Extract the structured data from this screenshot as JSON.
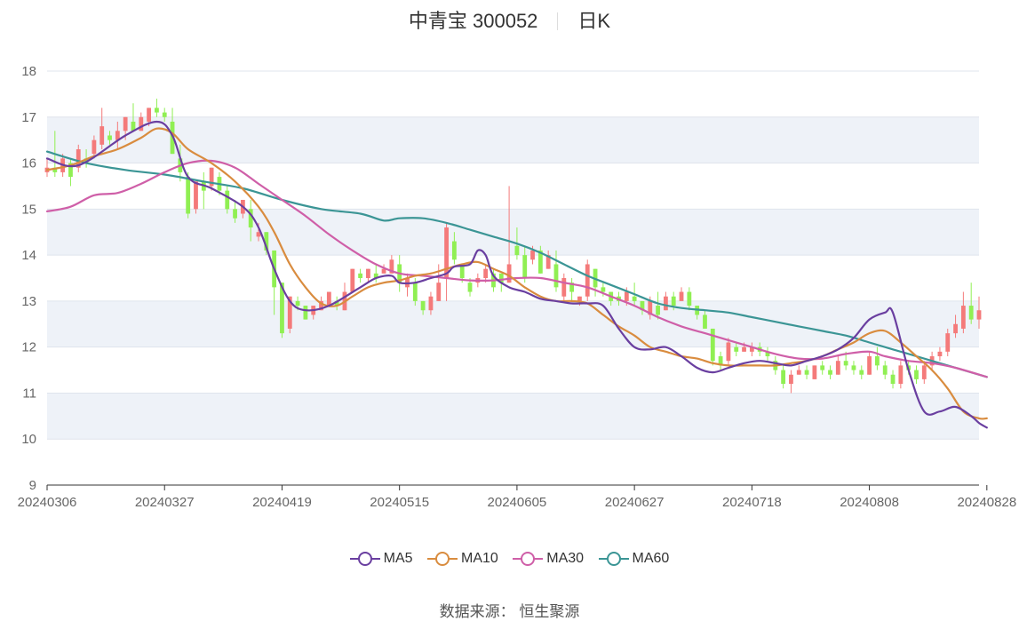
{
  "title": {
    "name": "中青宝 300052",
    "period": "日K"
  },
  "source": {
    "label": "数据来源：",
    "value": "恒生聚源"
  },
  "colors": {
    "up": "#f47a7a",
    "down": "#90ef53",
    "MA5": "#6a3fa0",
    "MA10": "#d98c3f",
    "MA30": "#cf5fa8",
    "MA60": "#3b9595",
    "band": "#eef2f8",
    "grid": "#dfe4ec"
  },
  "chart_data": {
    "type": "candlestick",
    "ylim": [
      9,
      18
    ],
    "yticks": [
      9,
      10,
      11,
      12,
      13,
      14,
      15,
      16,
      17,
      18
    ],
    "xtick_labels": [
      "20240306",
      "20240327",
      "20240419",
      "20240515",
      "20240605",
      "20240627",
      "20240718",
      "20240808",
      "20240828"
    ],
    "xtick_indices": [
      0,
      15,
      30,
      45,
      60,
      75,
      90,
      105,
      120
    ],
    "legend": [
      "MA5",
      "MA10",
      "MA30",
      "MA60"
    ],
    "legend_position": "bottom",
    "candles": [
      [
        15.8,
        15.9,
        16.1,
        15.7
      ],
      [
        15.9,
        15.8,
        16.7,
        15.7
      ],
      [
        15.8,
        16.1,
        16.2,
        15.7
      ],
      [
        16.0,
        15.7,
        16.1,
        15.5
      ],
      [
        15.9,
        16.3,
        16.4,
        15.8
      ],
      [
        16.1,
        16.0,
        16.3,
        15.9
      ],
      [
        16.2,
        16.5,
        16.6,
        16.1
      ],
      [
        16.4,
        16.8,
        17.2,
        16.3
      ],
      [
        16.6,
        16.5,
        16.7,
        16.4
      ],
      [
        16.5,
        16.7,
        16.9,
        16.3
      ],
      [
        16.7,
        17.0,
        17.0,
        16.5
      ],
      [
        16.9,
        16.7,
        17.3,
        16.7
      ],
      [
        16.7,
        17.0,
        17.1,
        16.7
      ],
      [
        16.9,
        17.2,
        17.2,
        16.8
      ],
      [
        17.2,
        17.1,
        17.4,
        17.0
      ],
      [
        17.1,
        17.0,
        17.2,
        16.9
      ],
      [
        16.9,
        16.2,
        17.2,
        16.2
      ],
      [
        16.1,
        15.8,
        16.4,
        15.6
      ],
      [
        15.7,
        14.9,
        15.8,
        14.8
      ],
      [
        15.0,
        15.6,
        15.6,
        14.9
      ],
      [
        15.6,
        15.4,
        15.8,
        15.0
      ],
      [
        15.5,
        15.9,
        15.9,
        15.4
      ],
      [
        15.7,
        15.4,
        15.8,
        15.3
      ],
      [
        15.4,
        15.0,
        15.5,
        14.9
      ],
      [
        15.0,
        14.8,
        15.2,
        14.7
      ],
      [
        14.9,
        15.2,
        15.2,
        14.8
      ],
      [
        15.0,
        14.6,
        15.2,
        14.3
      ],
      [
        14.4,
        14.5,
        14.7,
        14.3
      ],
      [
        14.5,
        14.1,
        14.5,
        14.0
      ],
      [
        14.1,
        13.3,
        14.1,
        12.7
      ],
      [
        13.4,
        12.3,
        13.4,
        12.2
      ],
      [
        12.4,
        13.1,
        13.1,
        12.3
      ],
      [
        13.0,
        12.9,
        13.1,
        12.8
      ],
      [
        12.9,
        12.6,
        12.9,
        12.6
      ],
      [
        12.7,
        12.9,
        12.9,
        12.6
      ],
      [
        12.8,
        13.0,
        13.1,
        12.8
      ],
      [
        12.9,
        13.2,
        13.2,
        12.9
      ],
      [
        13.0,
        12.9,
        13.1,
        12.8
      ],
      [
        12.8,
        13.2,
        13.4,
        12.8
      ],
      [
        13.2,
        13.7,
        13.7,
        13.2
      ],
      [
        13.6,
        13.5,
        13.7,
        13.4
      ],
      [
        13.5,
        13.7,
        13.7,
        13.4
      ],
      [
        13.6,
        13.5,
        13.8,
        13.4
      ],
      [
        13.6,
        13.7,
        13.8,
        13.6
      ],
      [
        13.6,
        13.9,
        14.0,
        13.6
      ],
      [
        13.8,
        13.4,
        14.0,
        13.2
      ],
      [
        13.3,
        13.5,
        13.6,
        13.1
      ],
      [
        13.4,
        13.0,
        13.5,
        12.9
      ],
      [
        13.0,
        12.8,
        13.0,
        12.7
      ],
      [
        12.8,
        13.1,
        13.2,
        12.7
      ],
      [
        13.0,
        13.4,
        13.8,
        13.0
      ],
      [
        13.5,
        14.6,
        14.7,
        13.0
      ],
      [
        14.3,
        13.9,
        14.5,
        13.8
      ],
      [
        13.8,
        13.5,
        13.8,
        13.4
      ],
      [
        13.4,
        13.2,
        13.5,
        13.1
      ],
      [
        13.4,
        13.5,
        13.6,
        13.3
      ],
      [
        13.5,
        13.7,
        13.8,
        13.4
      ],
      [
        13.6,
        13.3,
        13.7,
        13.2
      ],
      [
        13.6,
        13.4,
        13.6,
        13.2
      ],
      [
        13.4,
        13.8,
        15.5,
        13.4
      ],
      [
        14.2,
        14.0,
        14.6,
        13.9
      ],
      [
        14.0,
        13.5,
        14.2,
        13.4
      ],
      [
        13.9,
        14.1,
        14.2,
        13.8
      ],
      [
        14.1,
        13.6,
        14.2,
        13.6
      ],
      [
        13.7,
        14.0,
        14.1,
        13.7
      ],
      [
        13.8,
        13.3,
        14.1,
        13.2
      ],
      [
        13.1,
        13.5,
        13.6,
        13.0
      ],
      [
        13.4,
        13.2,
        13.5,
        13.0
      ],
      [
        13.0,
        13.1,
        13.1,
        12.9
      ],
      [
        13.1,
        13.8,
        13.9,
        13.0
      ],
      [
        13.7,
        13.3,
        13.7,
        13.1
      ],
      [
        13.3,
        13.2,
        13.4,
        13.1
      ],
      [
        13.2,
        13.0,
        13.2,
        12.9
      ],
      [
        13.1,
        13.0,
        13.2,
        12.9
      ],
      [
        13.0,
        13.2,
        13.3,
        12.9
      ],
      [
        13.1,
        13.0,
        13.4,
        12.9
      ],
      [
        13.0,
        12.8,
        13.0,
        12.7
      ],
      [
        12.7,
        13.0,
        13.1,
        12.6
      ],
      [
        12.9,
        12.7,
        13.2,
        12.6
      ],
      [
        12.8,
        13.1,
        13.2,
        12.8
      ],
      [
        13.1,
        12.9,
        13.2,
        12.8
      ],
      [
        13.0,
        13.2,
        13.3,
        13.0
      ],
      [
        13.2,
        12.9,
        13.3,
        12.8
      ],
      [
        12.9,
        12.7,
        12.9,
        12.6
      ],
      [
        12.7,
        12.4,
        12.8,
        12.4
      ],
      [
        12.4,
        11.7,
        12.4,
        11.6
      ],
      [
        11.8,
        11.6,
        11.9,
        11.5
      ],
      [
        11.7,
        12.1,
        12.2,
        11.6
      ],
      [
        12.0,
        11.9,
        12.1,
        11.8
      ],
      [
        11.9,
        12.0,
        12.1,
        11.9
      ],
      [
        11.9,
        12.0,
        12.1,
        11.8
      ],
      [
        12.0,
        11.9,
        12.1,
        11.8
      ],
      [
        11.9,
        11.8,
        12.0,
        11.7
      ],
      [
        11.7,
        11.5,
        11.8,
        11.4
      ],
      [
        11.5,
        11.2,
        11.6,
        11.1
      ],
      [
        11.2,
        11.4,
        11.5,
        11.0
      ],
      [
        11.4,
        11.5,
        11.6,
        11.4
      ],
      [
        11.5,
        11.4,
        11.6,
        11.3
      ],
      [
        11.3,
        11.6,
        11.6,
        11.3
      ],
      [
        11.6,
        11.5,
        11.7,
        11.4
      ],
      [
        11.5,
        11.4,
        11.6,
        11.3
      ],
      [
        11.4,
        11.7,
        11.8,
        11.4
      ],
      [
        11.7,
        11.6,
        11.9,
        11.5
      ],
      [
        11.6,
        11.5,
        11.7,
        11.4
      ],
      [
        11.5,
        11.4,
        11.6,
        11.3
      ],
      [
        11.4,
        11.8,
        11.9,
        11.4
      ],
      [
        11.8,
        11.6,
        12.0,
        11.5
      ],
      [
        11.6,
        11.4,
        11.7,
        11.3
      ],
      [
        11.4,
        11.2,
        11.5,
        11.1
      ],
      [
        11.2,
        11.6,
        11.7,
        11.1
      ],
      [
        11.6,
        11.5,
        11.7,
        11.4
      ],
      [
        11.5,
        11.3,
        11.6,
        11.2
      ],
      [
        11.3,
        11.6,
        11.7,
        11.2
      ],
      [
        11.6,
        11.8,
        11.9,
        11.5
      ],
      [
        11.8,
        11.9,
        12.0,
        11.7
      ],
      [
        11.9,
        12.3,
        12.4,
        11.8
      ],
      [
        12.3,
        12.5,
        12.7,
        12.2
      ],
      [
        12.4,
        12.9,
        13.2,
        12.3
      ],
      [
        12.9,
        12.6,
        13.4,
        12.5
      ],
      [
        12.6,
        12.8,
        13.1,
        12.4
      ]
    ],
    "ma5": [
      [
        0,
        16.1
      ],
      [
        4,
        15.95
      ],
      [
        10,
        16.6
      ],
      [
        14,
        16.9
      ],
      [
        16,
        16.6
      ],
      [
        18,
        15.7
      ],
      [
        21,
        15.45
      ],
      [
        25,
        15.05
      ],
      [
        27,
        14.6
      ],
      [
        29,
        13.7
      ],
      [
        31,
        13.0
      ],
      [
        33,
        12.8
      ],
      [
        36,
        12.9
      ],
      [
        40,
        13.3
      ],
      [
        42,
        13.5
      ],
      [
        44,
        13.55
      ],
      [
        45,
        13.4
      ],
      [
        47,
        13.4
      ],
      [
        49,
        13.5
      ],
      [
        51,
        13.6
      ],
      [
        52,
        13.75
      ],
      [
        54,
        13.8
      ],
      [
        55,
        14.1
      ],
      [
        56,
        14.0
      ],
      [
        57,
        13.55
      ],
      [
        59,
        13.3
      ],
      [
        61,
        13.2
      ],
      [
        63,
        13.05
      ],
      [
        65,
        13.0
      ],
      [
        67,
        12.95
      ],
      [
        69,
        12.95
      ],
      [
        71,
        12.9
      ],
      [
        73,
        12.4
      ],
      [
        75,
        12.0
      ],
      [
        77,
        11.95
      ],
      [
        79,
        12.0
      ],
      [
        81,
        11.8
      ],
      [
        83,
        11.55
      ],
      [
        85,
        11.45
      ],
      [
        87,
        11.55
      ],
      [
        89,
        11.65
      ],
      [
        91,
        11.7
      ],
      [
        93,
        11.65
      ],
      [
        95,
        11.6
      ],
      [
        97,
        11.7
      ],
      [
        99,
        11.8
      ],
      [
        101,
        11.95
      ],
      [
        103,
        12.2
      ],
      [
        105,
        12.6
      ],
      [
        107,
        12.75
      ],
      [
        108,
        12.75
      ],
      [
        110,
        11.5
      ],
      [
        112,
        10.6
      ],
      [
        114,
        10.6
      ],
      [
        116,
        10.7
      ],
      [
        118,
        10.5
      ],
      [
        119,
        10.35
      ],
      [
        120,
        10.25
      ]
    ],
    "ma10": [
      [
        0,
        15.85
      ],
      [
        3,
        15.95
      ],
      [
        6,
        16.15
      ],
      [
        9,
        16.3
      ],
      [
        12,
        16.55
      ],
      [
        14,
        16.75
      ],
      [
        16,
        16.65
      ],
      [
        18,
        16.3
      ],
      [
        21,
        16.0
      ],
      [
        24,
        15.6
      ],
      [
        27,
        15.05
      ],
      [
        29,
        14.5
      ],
      [
        31,
        13.8
      ],
      [
        33,
        13.3
      ],
      [
        35,
        12.95
      ],
      [
        37,
        12.9
      ],
      [
        39,
        13.1
      ],
      [
        41,
        13.3
      ],
      [
        43,
        13.4
      ],
      [
        45,
        13.45
      ],
      [
        47,
        13.55
      ],
      [
        49,
        13.6
      ],
      [
        51,
        13.7
      ],
      [
        53,
        13.8
      ],
      [
        55,
        13.85
      ],
      [
        57,
        13.7
      ],
      [
        59,
        13.55
      ],
      [
        61,
        13.3
      ],
      [
        63,
        13.1
      ],
      [
        65,
        13.0
      ],
      [
        67,
        13.0
      ],
      [
        69,
        12.95
      ],
      [
        71,
        12.7
      ],
      [
        73,
        12.45
      ],
      [
        75,
        12.25
      ],
      [
        77,
        12.0
      ],
      [
        79,
        11.9
      ],
      [
        81,
        11.8
      ],
      [
        83,
        11.75
      ],
      [
        85,
        11.65
      ],
      [
        87,
        11.6
      ],
      [
        89,
        11.6
      ],
      [
        91,
        11.6
      ],
      [
        93,
        11.6
      ],
      [
        95,
        11.65
      ],
      [
        97,
        11.7
      ],
      [
        99,
        11.8
      ],
      [
        101,
        11.95
      ],
      [
        103,
        12.1
      ],
      [
        105,
        12.3
      ],
      [
        107,
        12.35
      ],
      [
        109,
        12.1
      ],
      [
        111,
        11.8
      ],
      [
        113,
        11.5
      ],
      [
        115,
        11.1
      ],
      [
        117,
        10.6
      ],
      [
        119,
        10.45
      ],
      [
        120,
        10.45
      ]
    ],
    "ma30": [
      [
        0,
        14.95
      ],
      [
        3,
        15.05
      ],
      [
        6,
        15.3
      ],
      [
        9,
        15.35
      ],
      [
        12,
        15.55
      ],
      [
        15,
        15.8
      ],
      [
        18,
        16.0
      ],
      [
        21,
        16.05
      ],
      [
        24,
        15.9
      ],
      [
        27,
        15.55
      ],
      [
        30,
        15.2
      ],
      [
        33,
        14.85
      ],
      [
        36,
        14.45
      ],
      [
        39,
        14.1
      ],
      [
        42,
        13.8
      ],
      [
        45,
        13.6
      ],
      [
        48,
        13.55
      ],
      [
        51,
        13.5
      ],
      [
        54,
        13.45
      ],
      [
        57,
        13.45
      ],
      [
        60,
        13.5
      ],
      [
        63,
        13.5
      ],
      [
        66,
        13.4
      ],
      [
        69,
        13.3
      ],
      [
        72,
        13.1
      ],
      [
        75,
        12.9
      ],
      [
        78,
        12.65
      ],
      [
        81,
        12.45
      ],
      [
        84,
        12.3
      ],
      [
        87,
        12.15
      ],
      [
        90,
        12.0
      ],
      [
        93,
        11.85
      ],
      [
        96,
        11.75
      ],
      [
        99,
        11.75
      ],
      [
        102,
        11.85
      ],
      [
        105,
        11.9
      ],
      [
        107,
        11.8
      ],
      [
        110,
        11.7
      ],
      [
        113,
        11.65
      ],
      [
        116,
        11.55
      ],
      [
        120,
        11.35
      ]
    ],
    "ma60": [
      [
        0,
        16.25
      ],
      [
        5,
        16.0
      ],
      [
        10,
        15.85
      ],
      [
        15,
        15.75
      ],
      [
        20,
        15.6
      ],
      [
        25,
        15.45
      ],
      [
        30,
        15.2
      ],
      [
        35,
        15.0
      ],
      [
        40,
        14.9
      ],
      [
        43,
        14.75
      ],
      [
        45,
        14.8
      ],
      [
        48,
        14.8
      ],
      [
        51,
        14.7
      ],
      [
        54,
        14.55
      ],
      [
        57,
        14.4
      ],
      [
        60,
        14.25
      ],
      [
        63,
        14.05
      ],
      [
        66,
        13.8
      ],
      [
        69,
        13.55
      ],
      [
        72,
        13.35
      ],
      [
        75,
        13.15
      ],
      [
        78,
        12.95
      ],
      [
        81,
        12.85
      ],
      [
        84,
        12.8
      ],
      [
        87,
        12.75
      ],
      [
        90,
        12.65
      ],
      [
        93,
        12.55
      ],
      [
        96,
        12.45
      ],
      [
        99,
        12.35
      ],
      [
        102,
        12.25
      ],
      [
        105,
        12.1
      ],
      [
        108,
        11.95
      ],
      [
        111,
        11.8
      ],
      [
        114,
        11.65
      ],
      [
        117,
        11.5
      ],
      [
        120,
        11.35
      ]
    ]
  }
}
